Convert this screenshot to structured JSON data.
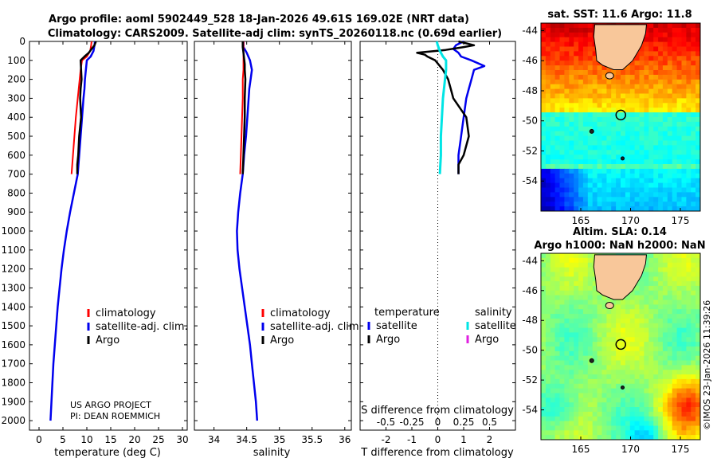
{
  "title": {
    "line1": "Argo profile: aoml 5902449_528 18-Jan-2026 49.61S 169.02E (NRT data)",
    "line2": "Climatology: CARS2009. Satellite-adj clim: synTS_20260118.nc (0.69d earlier)"
  },
  "colors": {
    "climatology": "#ff0000",
    "satellite": "#0000ee",
    "argo": "#000000",
    "sat_salinity": "#00e5e5",
    "argo_salinity": "#e020e0"
  },
  "watermark": "©IMOS 23-Jan-2026 11:39:26",
  "credit": {
    "line1": "US ARGO PROJECT",
    "line2": "PI: DEAN ROEMMICH"
  },
  "chart_data": [
    {
      "type": "line",
      "xlabel": "temperature (deg C)",
      "ylabel": "",
      "xlim": [
        -2,
        31
      ],
      "ylim": [
        2050,
        0
      ],
      "y_inverted": true,
      "xticks": [
        "0",
        "5",
        "10",
        "15",
        "20",
        "25",
        "30"
      ],
      "yticks": [
        "0",
        "100",
        "200",
        "300",
        "400",
        "500",
        "600",
        "700",
        "800",
        "900",
        "1000",
        "1100",
        "1200",
        "1300",
        "1400",
        "1500",
        "1600",
        "1700",
        "1800",
        "1900",
        "2000"
      ],
      "legend": {
        "position": "lower-middle",
        "entries": [
          "climatology",
          "satellite-adj. clim.",
          "Argo"
        ]
      },
      "series": [
        {
          "name": "climatology",
          "color": "#ff0000",
          "depth": [
            0,
            20,
            50,
            80,
            100,
            150,
            200,
            250,
            300,
            400,
            500,
            600,
            700
          ],
          "values": [
            11.0,
            10.9,
            10.7,
            10.0,
            9.0,
            8.7,
            8.5,
            8.3,
            8.1,
            7.7,
            7.4,
            7.1,
            6.8
          ]
        },
        {
          "name": "satellite-adj. clim.",
          "color": "#0000ee",
          "depth": [
            0,
            20,
            50,
            80,
            100,
            150,
            200,
            250,
            300,
            400,
            500,
            600,
            700,
            800,
            900,
            1000,
            1100,
            1200,
            1300,
            1400,
            1500,
            1600,
            1700,
            1800,
            1900,
            2000
          ],
          "values": [
            11.7,
            11.6,
            11.4,
            10.8,
            10.0,
            9.8,
            9.6,
            9.5,
            9.3,
            9.0,
            8.7,
            8.4,
            8.1,
            7.3,
            6.5,
            5.8,
            5.2,
            4.7,
            4.3,
            3.9,
            3.6,
            3.3,
            3.0,
            2.8,
            2.6,
            2.4
          ]
        },
        {
          "name": "Argo",
          "color": "#000000",
          "depth": [
            0,
            20,
            40,
            60,
            80,
            100,
            150,
            200,
            250,
            300,
            400,
            500,
            600,
            650,
            700
          ],
          "values": [
            11.9,
            11.6,
            11.0,
            10.4,
            9.5,
            8.7,
            8.8,
            8.9,
            8.7,
            8.6,
            8.8,
            8.4,
            8.2,
            8.0,
            8.0
          ]
        }
      ]
    },
    {
      "type": "line",
      "xlabel": "salinity",
      "ylabel": "",
      "xlim": [
        33.7,
        36.1
      ],
      "ylim": [
        2050,
        0
      ],
      "y_inverted": true,
      "xticks": [
        "34",
        "34.5",
        "35",
        "35.5",
        "36"
      ],
      "legend": {
        "position": "lower-middle",
        "entries": [
          "climatology",
          "satellite-adj. clim.",
          "Argo"
        ]
      },
      "series": [
        {
          "name": "climatology",
          "color": "#ff0000",
          "depth": [
            0,
            50,
            100,
            150,
            200,
            300,
            400,
            500,
            600,
            700
          ],
          "values": [
            34.45,
            34.45,
            34.45,
            34.45,
            34.44,
            34.44,
            34.43,
            34.42,
            34.41,
            34.4
          ]
        },
        {
          "name": "satellite-adj. clim.",
          "color": "#0000ee",
          "depth": [
            0,
            30,
            60,
            100,
            150,
            200,
            250,
            300,
            400,
            500,
            600,
            700,
            800,
            900,
            1000,
            1100,
            1200,
            1300,
            1400,
            1500,
            1600,
            1700,
            1800,
            1900,
            2000
          ],
          "values": [
            34.45,
            34.45,
            34.5,
            34.55,
            34.58,
            34.56,
            34.54,
            34.53,
            34.51,
            34.49,
            34.46,
            34.44,
            34.4,
            34.37,
            34.35,
            34.36,
            34.39,
            34.43,
            34.47,
            34.51,
            34.55,
            34.58,
            34.61,
            34.64,
            34.66
          ]
        },
        {
          "name": "Argo",
          "color": "#000000",
          "depth": [
            0,
            30,
            60,
            90,
            120,
            150,
            200,
            300,
            400,
            500,
            600,
            700
          ],
          "values": [
            34.44,
            34.44,
            34.45,
            34.46,
            34.47,
            34.47,
            34.48,
            34.47,
            34.47,
            34.46,
            34.45,
            34.44
          ]
        }
      ]
    },
    {
      "type": "line",
      "xlabel": "T difference from climatology",
      "x2label": "S difference from climatology",
      "xlim": [
        -3,
        3
      ],
      "x2lim": [
        -0.75,
        0.75
      ],
      "ylim": [
        2050,
        0
      ],
      "y_inverted": true,
      "xticks": [
        "-2",
        "-1",
        "0",
        "1",
        "2"
      ],
      "x2ticks": [
        "-0.5",
        "-0.25",
        "0",
        "0.25",
        "0.5"
      ],
      "legend": {
        "position": "lower-middle",
        "temperature_title": "temperature",
        "salinity_title": "salinity",
        "entries": [
          "satellite",
          "Argo",
          "satellite",
          "Argo"
        ]
      },
      "series": [
        {
          "name": "temperature satellite",
          "color": "#0000ee",
          "depth": [
            0,
            20,
            40,
            60,
            80,
            100,
            130,
            150,
            200,
            250,
            300,
            400,
            500,
            600,
            700
          ],
          "values": [
            1.0,
            0.7,
            0.6,
            0.8,
            0.9,
            1.3,
            1.8,
            1.4,
            1.3,
            1.2,
            1.1,
            1.0,
            0.9,
            0.8,
            0.8
          ]
        },
        {
          "name": "temperature Argo",
          "color": "#000000",
          "depth": [
            0,
            20,
            30,
            45,
            60,
            70,
            80,
            100,
            150,
            200,
            250,
            300,
            400,
            500,
            600,
            650,
            700
          ],
          "values": [
            0.8,
            1.4,
            1.0,
            0.3,
            -0.8,
            -0.5,
            -0.4,
            -0.1,
            0.2,
            0.4,
            0.5,
            0.6,
            1.1,
            1.2,
            1.0,
            0.8,
            0.8
          ]
        },
        {
          "name": "salinity satellite",
          "color": "#00e5e5",
          "depth": [
            0,
            20,
            50,
            80,
            100,
            150,
            200,
            250,
            300,
            400,
            500,
            600,
            700
          ],
          "values": [
            -0.01,
            0.0,
            0.02,
            0.05,
            0.08,
            0.08,
            0.07,
            0.06,
            0.05,
            0.04,
            0.03,
            0.03,
            0.02
          ]
        },
        {
          "name": "salinity Argo",
          "color": "#e020e0",
          "depth": [],
          "values": []
        }
      ]
    },
    {
      "type": "heatmap",
      "title": "sat. SST: 11.6 Argo: 11.8",
      "xticks": [
        "165",
        "170",
        "175"
      ],
      "yticks": [
        "-44",
        "-46",
        "-48",
        "-50",
        "-52",
        "-54"
      ],
      "xlim": [
        161,
        177
      ],
      "ylim": [
        -56,
        -43.5
      ],
      "argo_position": {
        "lon": 169.02,
        "lat": -49.61
      }
    },
    {
      "type": "heatmap",
      "title_line1": "Altim. SLA: 0.14",
      "title_line2": "Argo h1000: NaN h2000: NaN",
      "xticks": [
        "165",
        "170",
        "175"
      ],
      "yticks": [
        "-44",
        "-46",
        "-48",
        "-50",
        "-52",
        "-54"
      ],
      "xlim": [
        161,
        177
      ],
      "ylim": [
        -56,
        -43.5
      ],
      "argo_position": {
        "lon": 169.02,
        "lat": -49.61
      }
    }
  ]
}
